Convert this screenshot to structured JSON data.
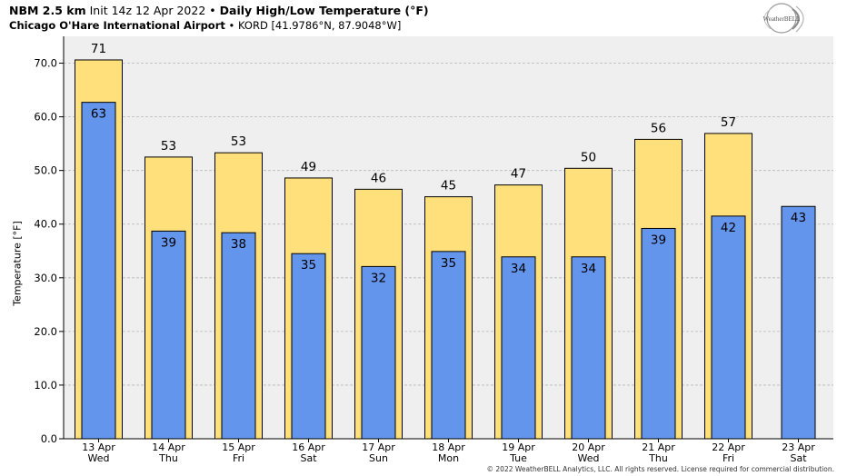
{
  "header": {
    "line1_model": "NBM 2.5 km",
    "line1_init": "Init 14z 12 Apr 2022",
    "line1_sep": "•",
    "line1_product": "Daily High/Low Temperature (°F)",
    "line2_station": "Chicago O'Hare International Airport",
    "line2_sep": "•",
    "line2_code": "KORD [41.9786°N, 87.9048°W]"
  },
  "logo": {
    "text": "WeatherBELL",
    "icon": "weatherbell-logo"
  },
  "footer": {
    "copyright": "© 2022 WeatherBELL Analytics, LLC. All rights reserved. License required for commercial distribution."
  },
  "colors": {
    "high": "#FFE07A",
    "low": "#6495ED",
    "plot_bg": "#EFEFEF",
    "grid": "#B8B8B8"
  },
  "chart_data": {
    "type": "bar",
    "xlabel": "",
    "ylabel": "Temperature [°F]",
    "ylim": [
      0,
      75
    ],
    "yticks": [
      "0.0",
      "10.0",
      "20.0",
      "30.0",
      "40.0",
      "50.0",
      "60.0",
      "70.0"
    ],
    "grid": true,
    "categories": [
      {
        "date": "13 Apr",
        "day": "Wed"
      },
      {
        "date": "14 Apr",
        "day": "Thu"
      },
      {
        "date": "15 Apr",
        "day": "Fri"
      },
      {
        "date": "16 Apr",
        "day": "Sat"
      },
      {
        "date": "17 Apr",
        "day": "Sun"
      },
      {
        "date": "18 Apr",
        "day": "Mon"
      },
      {
        "date": "19 Apr",
        "day": "Tue"
      },
      {
        "date": "20 Apr",
        "day": "Wed"
      },
      {
        "date": "21 Apr",
        "day": "Thu"
      },
      {
        "date": "22 Apr",
        "day": "Fri"
      },
      {
        "date": "23 Apr",
        "day": "Sat"
      }
    ],
    "series": [
      {
        "key": "high",
        "values": [
          70.6,
          52.5,
          53.3,
          48.6,
          46.5,
          45.1,
          47.3,
          50.4,
          55.8,
          56.9,
          null
        ],
        "labels": [
          "71",
          "53",
          "53",
          "49",
          "46",
          "45",
          "47",
          "50",
          "56",
          "57",
          ""
        ]
      },
      {
        "key": "low",
        "values": [
          62.7,
          38.7,
          38.4,
          34.5,
          32.1,
          34.9,
          33.9,
          33.9,
          39.2,
          41.5,
          43.3
        ],
        "labels": [
          "63",
          "39",
          "38",
          "35",
          "32",
          "35",
          "34",
          "34",
          "39",
          "42",
          "43"
        ]
      }
    ]
  }
}
